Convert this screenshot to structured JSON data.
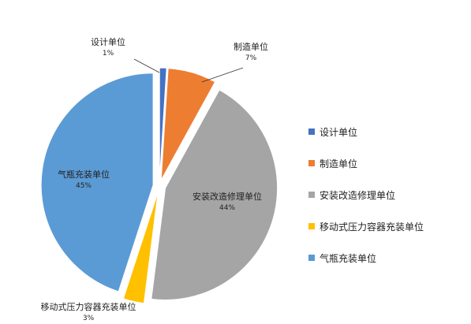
{
  "chart_data": {
    "type": "pie",
    "categories": [
      "设计单位",
      "制造单位",
      "安装改造修理单位",
      "移动式压力容器充装单位",
      "气瓶充装单位"
    ],
    "values": [
      1,
      7,
      44,
      3,
      45
    ],
    "value_labels": [
      "1%",
      "7%",
      "44%",
      "3%",
      "45%"
    ],
    "colors": [
      "#4472C4",
      "#ED7D31",
      "#A5A5A5",
      "#FFC000",
      "#5B9BD5"
    ],
    "exploded": true,
    "legend_position": "right"
  },
  "legend": {
    "items": [
      "设计单位",
      "制造单位",
      "安装改造修理单位",
      "移动式压力容器充装单位",
      "气瓶充装单位"
    ]
  }
}
